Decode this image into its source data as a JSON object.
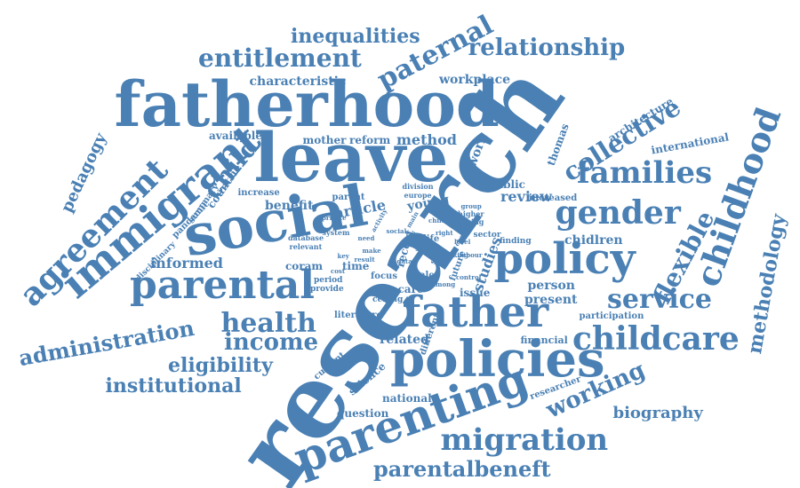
{
  "color": "#4a80b4",
  "words": [
    "research",
    "fatherhood",
    "leave",
    "social",
    "policy",
    "policies",
    "father",
    "parenting",
    "parental",
    "immigrant",
    "agreement",
    "migration",
    "childhood",
    "childcare",
    "gender",
    "families",
    "service",
    "health",
    "income",
    "paternal",
    "entitlement",
    "relationship",
    "inequalities",
    "administration",
    "eligibility",
    "institutional",
    "parentalbeneft",
    "working",
    "flexible",
    "collective",
    "methodology",
    "biography",
    "child",
    "pedagogy",
    "informed",
    "benefit",
    "article",
    "review",
    "method",
    "mother",
    "reform",
    "workplace",
    "characteristic",
    "available",
    "related",
    "national",
    "science",
    "young",
    "person",
    "present",
    "chidlren",
    "thomas",
    "work",
    "public",
    "international",
    "architecture",
    "financial",
    "question",
    "participation",
    "researcher",
    "increased",
    "division",
    "europe",
    "higher",
    "taking",
    "sector",
    "finding",
    "issue",
    "studies",
    "future",
    "male",
    "focus",
    "ceiling",
    "care",
    "time",
    "coram",
    "period",
    "provide",
    "current",
    "literature",
    "different",
    "recent",
    "system",
    "database",
    "relevant",
    "parent",
    "increase",
    "summary",
    "countrie",
    "pandemic",
    "disciplinary",
    "private",
    "activity",
    "main",
    "group",
    "child",
    "life",
    "gap",
    "need",
    "make",
    "role",
    "labour",
    "control",
    "making",
    "result",
    "data",
    "still",
    "change",
    "level",
    "key",
    "social",
    "right",
    "among",
    "cost",
    "uk",
    "low"
  ]
}
